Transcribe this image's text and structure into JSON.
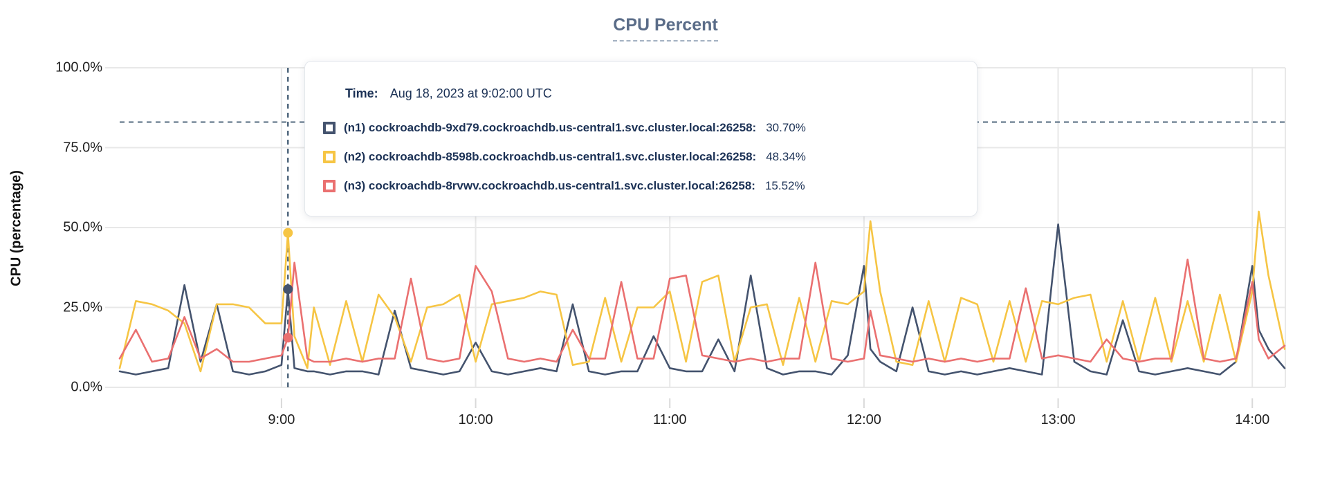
{
  "header": {
    "title": "CPU Percent"
  },
  "y_axis": {
    "label": "CPU (percentage)"
  },
  "tooltip": {
    "time_label": "Time:",
    "time_value": "Aug 18, 2023 at 9:02:00 UTC",
    "rows": [
      {
        "label": "(n1) cockroachdb-9xd79.cockroachdb.us-central1.svc.cluster.local:26258:",
        "value": "30.70%",
        "color": "#44536e"
      },
      {
        "label": "(n2) cockroachdb-8598b.cockroachdb.us-central1.svc.cluster.local:26258:",
        "value": "48.34%",
        "color": "#f6c544"
      },
      {
        "label": "(n3) cockroachdb-8rvwv.cockroachdb.us-central1.svc.cluster.local:26258:",
        "value": "15.52%",
        "color": "#ea7070"
      }
    ]
  },
  "chart_data": {
    "type": "line",
    "title": "CPU Percent",
    "xlabel": "",
    "ylabel": "CPU (percentage)",
    "ylim": [
      0,
      100
    ],
    "grid": true,
    "legend_position": "hover-tooltip",
    "y_ticks": [
      {
        "value": 0,
        "label": "0.0%"
      },
      {
        "value": 25,
        "label": "25.0%"
      },
      {
        "value": 50,
        "label": "50.0%"
      },
      {
        "value": 75,
        "label": "75.0%"
      },
      {
        "value": 100,
        "label": "100.0%"
      }
    ],
    "x_ticks": [
      {
        "minute": 540,
        "label": "9:00"
      },
      {
        "minute": 600,
        "label": "10:00"
      },
      {
        "minute": 660,
        "label": "11:00"
      },
      {
        "minute": 720,
        "label": "12:00"
      },
      {
        "minute": 780,
        "label": "13:00"
      },
      {
        "minute": 840,
        "label": "14:00"
      }
    ],
    "x_range_minutes": [
      490,
      850
    ],
    "cursor": {
      "minute": 542,
      "time": "Aug 18, 2023 at 9:02:00 UTC",
      "crosshair_percent": 83,
      "values": {
        "n1": 30.7,
        "n2": 48.34,
        "n3": 15.52
      }
    },
    "style": {
      "grid_color": "#e8e8e8",
      "tick_color": "#d9d9d9",
      "crosshair_color": "#51687e",
      "plot_right_edge_color": "#e8e8e8"
    },
    "x_minutes": [
      490,
      495,
      500,
      505,
      510,
      515,
      520,
      525,
      530,
      535,
      540,
      542,
      544,
      548,
      550,
      555,
      560,
      565,
      570,
      575,
      580,
      585,
      590,
      595,
      600,
      605,
      610,
      615,
      620,
      625,
      630,
      635,
      640,
      645,
      650,
      655,
      660,
      665,
      670,
      675,
      680,
      685,
      690,
      695,
      700,
      705,
      710,
      715,
      720,
      722,
      725,
      730,
      735,
      740,
      745,
      750,
      755,
      760,
      765,
      770,
      775,
      780,
      785,
      790,
      795,
      800,
      805,
      810,
      815,
      820,
      825,
      830,
      835,
      840,
      842,
      845,
      850
    ],
    "series": [
      {
        "name": "(n1) cockroachdb-9xd79.cockroachdb.us-central1.svc.cluster.local:26258",
        "color": "#44536e",
        "values": [
          5,
          4,
          5,
          6,
          32,
          8,
          26,
          5,
          4,
          5,
          7,
          30.7,
          6,
          5,
          5,
          4,
          5,
          5,
          4,
          24,
          6,
          5,
          4,
          5,
          14,
          5,
          4,
          5,
          6,
          5,
          26,
          5,
          4,
          5,
          5,
          16,
          6,
          5,
          5,
          15,
          5,
          35,
          6,
          4,
          5,
          5,
          4,
          10,
          38,
          12,
          8,
          5,
          25,
          5,
          4,
          5,
          4,
          5,
          6,
          5,
          4,
          51,
          8,
          5,
          4,
          21,
          5,
          4,
          5,
          6,
          5,
          4,
          8,
          38,
          18,
          12,
          6
        ]
      },
      {
        "name": "(n2) cockroachdb-8598b.cockroachdb.us-central1.svc.cluster.local:26258",
        "color": "#f6c544",
        "values": [
          6,
          27,
          26,
          24,
          20,
          5,
          26,
          26,
          25,
          20,
          20,
          48.34,
          16,
          6,
          25,
          7,
          27,
          8,
          29,
          22,
          8,
          25,
          26,
          29,
          8,
          26,
          27,
          28,
          30,
          29,
          7,
          8,
          28,
          8,
          25,
          25,
          30,
          8,
          33,
          35,
          8,
          25,
          26,
          7,
          28,
          8,
          27,
          26,
          30,
          52,
          30,
          8,
          7,
          27,
          8,
          28,
          26,
          8,
          27,
          8,
          27,
          26,
          28,
          29,
          8,
          27,
          8,
          28,
          8,
          27,
          8,
          29,
          8,
          30,
          55,
          35,
          12
        ]
      },
      {
        "name": "(n3) cockroachdb-8rvwv.cockroachdb.us-central1.svc.cluster.local:26258",
        "color": "#ea7070",
        "values": [
          9,
          18,
          8,
          9,
          22,
          9,
          12,
          8,
          8,
          9,
          10,
          15.52,
          39,
          9,
          8,
          8,
          9,
          8,
          9,
          9,
          34,
          9,
          8,
          9,
          38,
          30,
          9,
          8,
          9,
          8,
          18,
          9,
          9,
          33,
          9,
          9,
          34,
          35,
          10,
          9,
          8,
          9,
          8,
          9,
          9,
          39,
          9,
          8,
          9,
          24,
          10,
          9,
          8,
          9,
          8,
          9,
          8,
          9,
          9,
          31,
          9,
          10,
          9,
          8,
          15,
          9,
          8,
          9,
          9,
          40,
          9,
          8,
          9,
          33,
          15,
          9,
          13
        ]
      }
    ]
  }
}
